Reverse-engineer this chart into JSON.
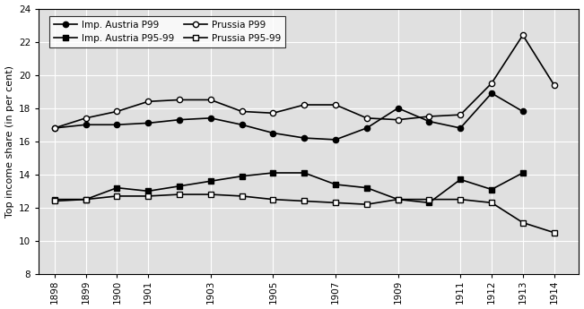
{
  "ylabel": "Top income share (in per cent)",
  "ylim": [
    8,
    24
  ],
  "yticks": [
    8,
    10,
    12,
    14,
    16,
    18,
    20,
    22,
    24
  ],
  "xtick_years": [
    1898,
    1899,
    1900,
    1901,
    1903,
    1905,
    1907,
    1909,
    1911,
    1912,
    1913,
    1914
  ],
  "austria_p99_x": [
    1898,
    1899,
    1900,
    1901,
    1902,
    1903,
    1904,
    1905,
    1906,
    1907,
    1908,
    1909,
    1910,
    1911,
    1912,
    1913
  ],
  "austria_p99_y": [
    16.8,
    17.0,
    17.0,
    17.1,
    17.3,
    17.4,
    17.0,
    16.5,
    16.2,
    16.1,
    16.8,
    18.0,
    17.2,
    16.8,
    18.9,
    17.8
  ],
  "austria_p9599_x": [
    1898,
    1899,
    1900,
    1901,
    1902,
    1903,
    1904,
    1905,
    1906,
    1907,
    1908,
    1909,
    1910,
    1911,
    1912,
    1913
  ],
  "austria_p9599_y": [
    12.5,
    12.5,
    13.2,
    13.0,
    13.3,
    13.6,
    13.9,
    14.1,
    14.1,
    13.4,
    13.2,
    12.5,
    12.3,
    13.7,
    13.1,
    14.1
  ],
  "prussia_p99_x": [
    1898,
    1899,
    1900,
    1901,
    1902,
    1903,
    1904,
    1905,
    1906,
    1907,
    1908,
    1909,
    1910,
    1911,
    1912,
    1913,
    1914
  ],
  "prussia_p99_y": [
    16.8,
    17.4,
    17.8,
    18.4,
    18.5,
    18.5,
    17.8,
    17.7,
    18.2,
    18.2,
    17.4,
    17.3,
    17.5,
    17.6,
    19.5,
    22.4,
    19.4
  ],
  "prussia_p9599_x": [
    1898,
    1899,
    1900,
    1901,
    1902,
    1903,
    1904,
    1905,
    1906,
    1907,
    1908,
    1909,
    1910,
    1911,
    1912,
    1913,
    1914
  ],
  "prussia_p9599_y": [
    12.4,
    12.5,
    12.7,
    12.7,
    12.8,
    12.8,
    12.7,
    12.5,
    12.4,
    12.3,
    12.2,
    12.5,
    12.5,
    12.5,
    12.3,
    11.1,
    10.5
  ],
  "legend_entries": [
    "Imp. Austria P99",
    "Imp. Austria P95-99",
    "Prussia P99",
    "Prussia P95-99"
  ],
  "xlim": [
    1897.5,
    1914.8
  ],
  "bg_color": "#e0e0e0"
}
